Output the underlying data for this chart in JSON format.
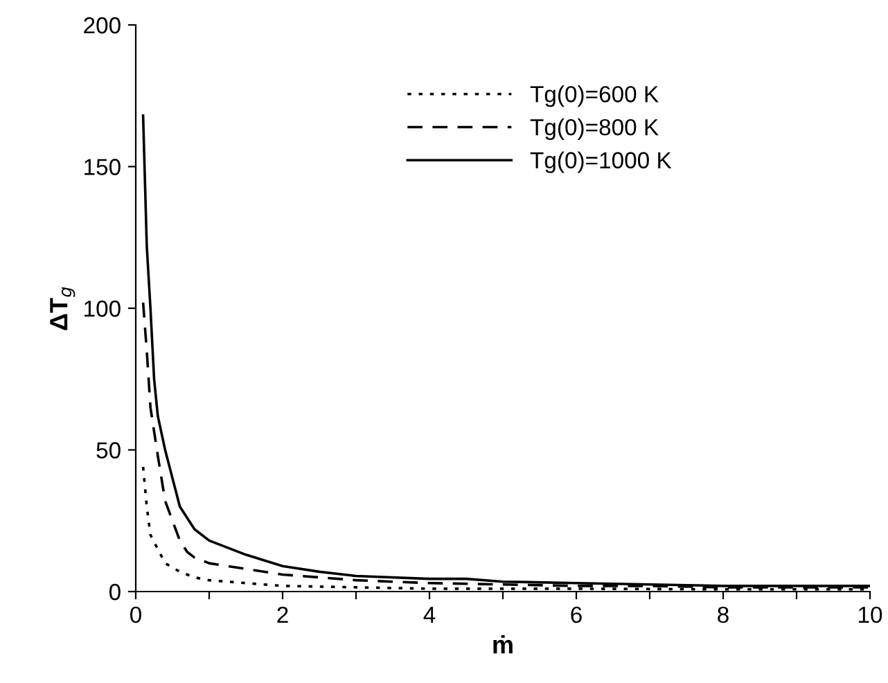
{
  "chart_data": {
    "type": "line",
    "xlabel": "ṁ",
    "ylabel": "ΔT$_{g}$",
    "xlim": [
      0,
      10
    ],
    "xticks": [
      0,
      {
        "value": 1,
        "label": null
      },
      2,
      {
        "value": 3,
        "label": null
      },
      4,
      {
        "value": 5,
        "label": null
      },
      6,
      {
        "value": 7,
        "label": null
      },
      8,
      {
        "value": 9,
        "label": null
      },
      10
    ],
    "ylim": [
      0,
      200
    ],
    "yticks": [
      0,
      50,
      100,
      150,
      200
    ],
    "grid": false,
    "legend": "top",
    "marker": "none",
    "series": [
      {
        "name": "Tg(0)=600 K",
        "color": "#000000",
        "line_style": "dotted",
        "x": [
          0.1,
          0.15,
          0.2,
          0.3,
          0.4,
          0.6,
          0.8,
          1,
          1.5,
          2,
          3,
          4,
          6,
          8,
          10
        ],
        "values": [
          44,
          30,
          20,
          15,
          10,
          7,
          5,
          4,
          3,
          2,
          1.5,
          1,
          1,
          0.8,
          0.8
        ]
      },
      {
        "name": "Tg(0)=800 K",
        "color": "#000000",
        "line_style": "dashed",
        "x": [
          0.1,
          0.15,
          0.2,
          0.3,
          0.4,
          0.5,
          0.6,
          0.7,
          0.8,
          1,
          1.5,
          2,
          2.5,
          3,
          4,
          5,
          6,
          7,
          8,
          10
        ],
        "values": [
          102,
          85,
          65,
          48,
          32,
          25,
          18,
          14,
          12,
          10,
          8,
          6,
          5,
          4,
          3,
          2.5,
          2,
          2,
          1.5,
          1.5
        ]
      },
      {
        "name": "Tg(0)=1000 K",
        "color": "#000000",
        "line_style": "solid",
        "x": [
          0.1,
          0.15,
          0.2,
          0.25,
          0.3,
          0.4,
          0.5,
          0.6,
          0.8,
          1,
          1.5,
          2,
          2.5,
          3,
          4,
          4.5,
          5,
          6,
          7,
          8,
          9,
          10
        ],
        "values": [
          168,
          122,
          100,
          75,
          62,
          50,
          40,
          30,
          22,
          18,
          13,
          9,
          7,
          5.5,
          4.5,
          4.5,
          3.5,
          3,
          2.5,
          2,
          2,
          2
        ]
      }
    ]
  }
}
